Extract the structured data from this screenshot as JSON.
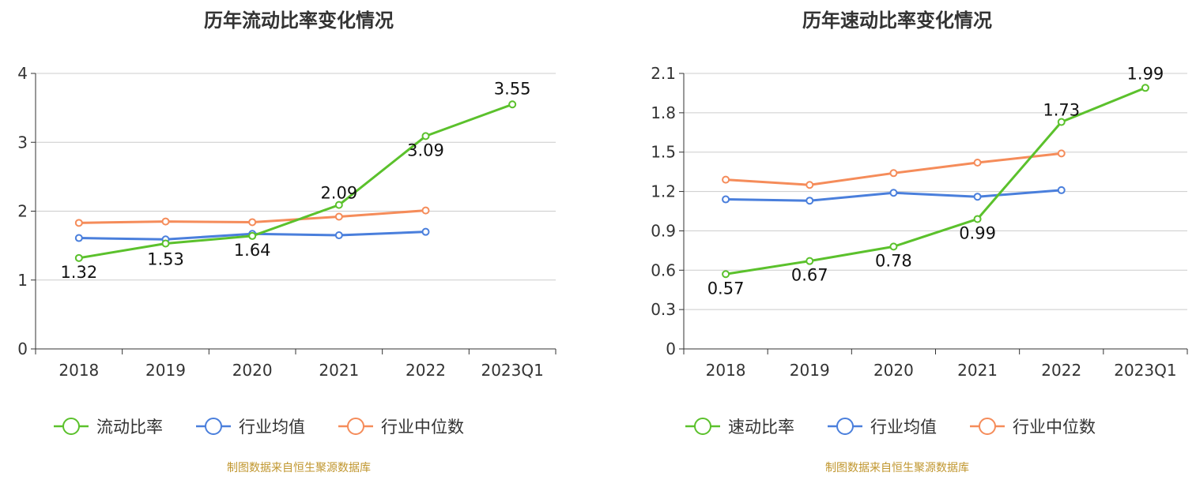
{
  "charts": [
    {
      "id": "left",
      "title": "历年流动比率变化情况",
      "source": "制图数据来自恒生聚源数据库"
    },
    {
      "id": "right",
      "title": "历年速动比率变化情况",
      "source": "制图数据来自恒生聚源数据库"
    }
  ],
  "colors": {
    "primary": "#5bc12c",
    "industry_avg": "#4a7fdc",
    "industry_median": "#f58c5a",
    "grid": "#cccccc",
    "source_text": "#c0962e"
  },
  "chart_data": [
    {
      "type": "line",
      "title": "历年流动比率变化情况",
      "categories": [
        "2018",
        "2019",
        "2020",
        "2021",
        "2022",
        "2023Q1"
      ],
      "ylim": [
        0,
        4
      ],
      "yticks": [
        0,
        1,
        2,
        3,
        4
      ],
      "grid": true,
      "legend_position": "bottom",
      "series": [
        {
          "name": "流动比率",
          "color": "#5bc12c",
          "labels": true,
          "values": [
            1.32,
            1.53,
            1.64,
            2.09,
            3.09,
            3.55
          ]
        },
        {
          "name": "行业均值",
          "color": "#4a7fdc",
          "labels": false,
          "values": [
            1.61,
            1.59,
            1.67,
            1.65,
            1.7,
            null
          ]
        },
        {
          "name": "行业中位数",
          "color": "#f58c5a",
          "labels": false,
          "values": [
            1.83,
            1.85,
            1.84,
            1.92,
            2.01,
            null
          ]
        }
      ]
    },
    {
      "type": "line",
      "title": "历年速动比率变化情况",
      "categories": [
        "2018",
        "2019",
        "2020",
        "2021",
        "2022",
        "2023Q1"
      ],
      "ylim": [
        0,
        2.1
      ],
      "yticks": [
        0,
        0.3,
        0.6,
        0.9,
        1.2,
        1.5,
        1.8,
        2.1
      ],
      "grid": true,
      "legend_position": "bottom",
      "series": [
        {
          "name": "速动比率",
          "color": "#5bc12c",
          "labels": true,
          "values": [
            0.57,
            0.67,
            0.78,
            0.99,
            1.73,
            1.99
          ]
        },
        {
          "name": "行业均值",
          "color": "#4a7fdc",
          "labels": false,
          "values": [
            1.14,
            1.13,
            1.19,
            1.16,
            1.21,
            null
          ]
        },
        {
          "name": "行业中位数",
          "color": "#f58c5a",
          "labels": false,
          "values": [
            1.29,
            1.25,
            1.34,
            1.42,
            1.49,
            null
          ]
        }
      ]
    }
  ]
}
